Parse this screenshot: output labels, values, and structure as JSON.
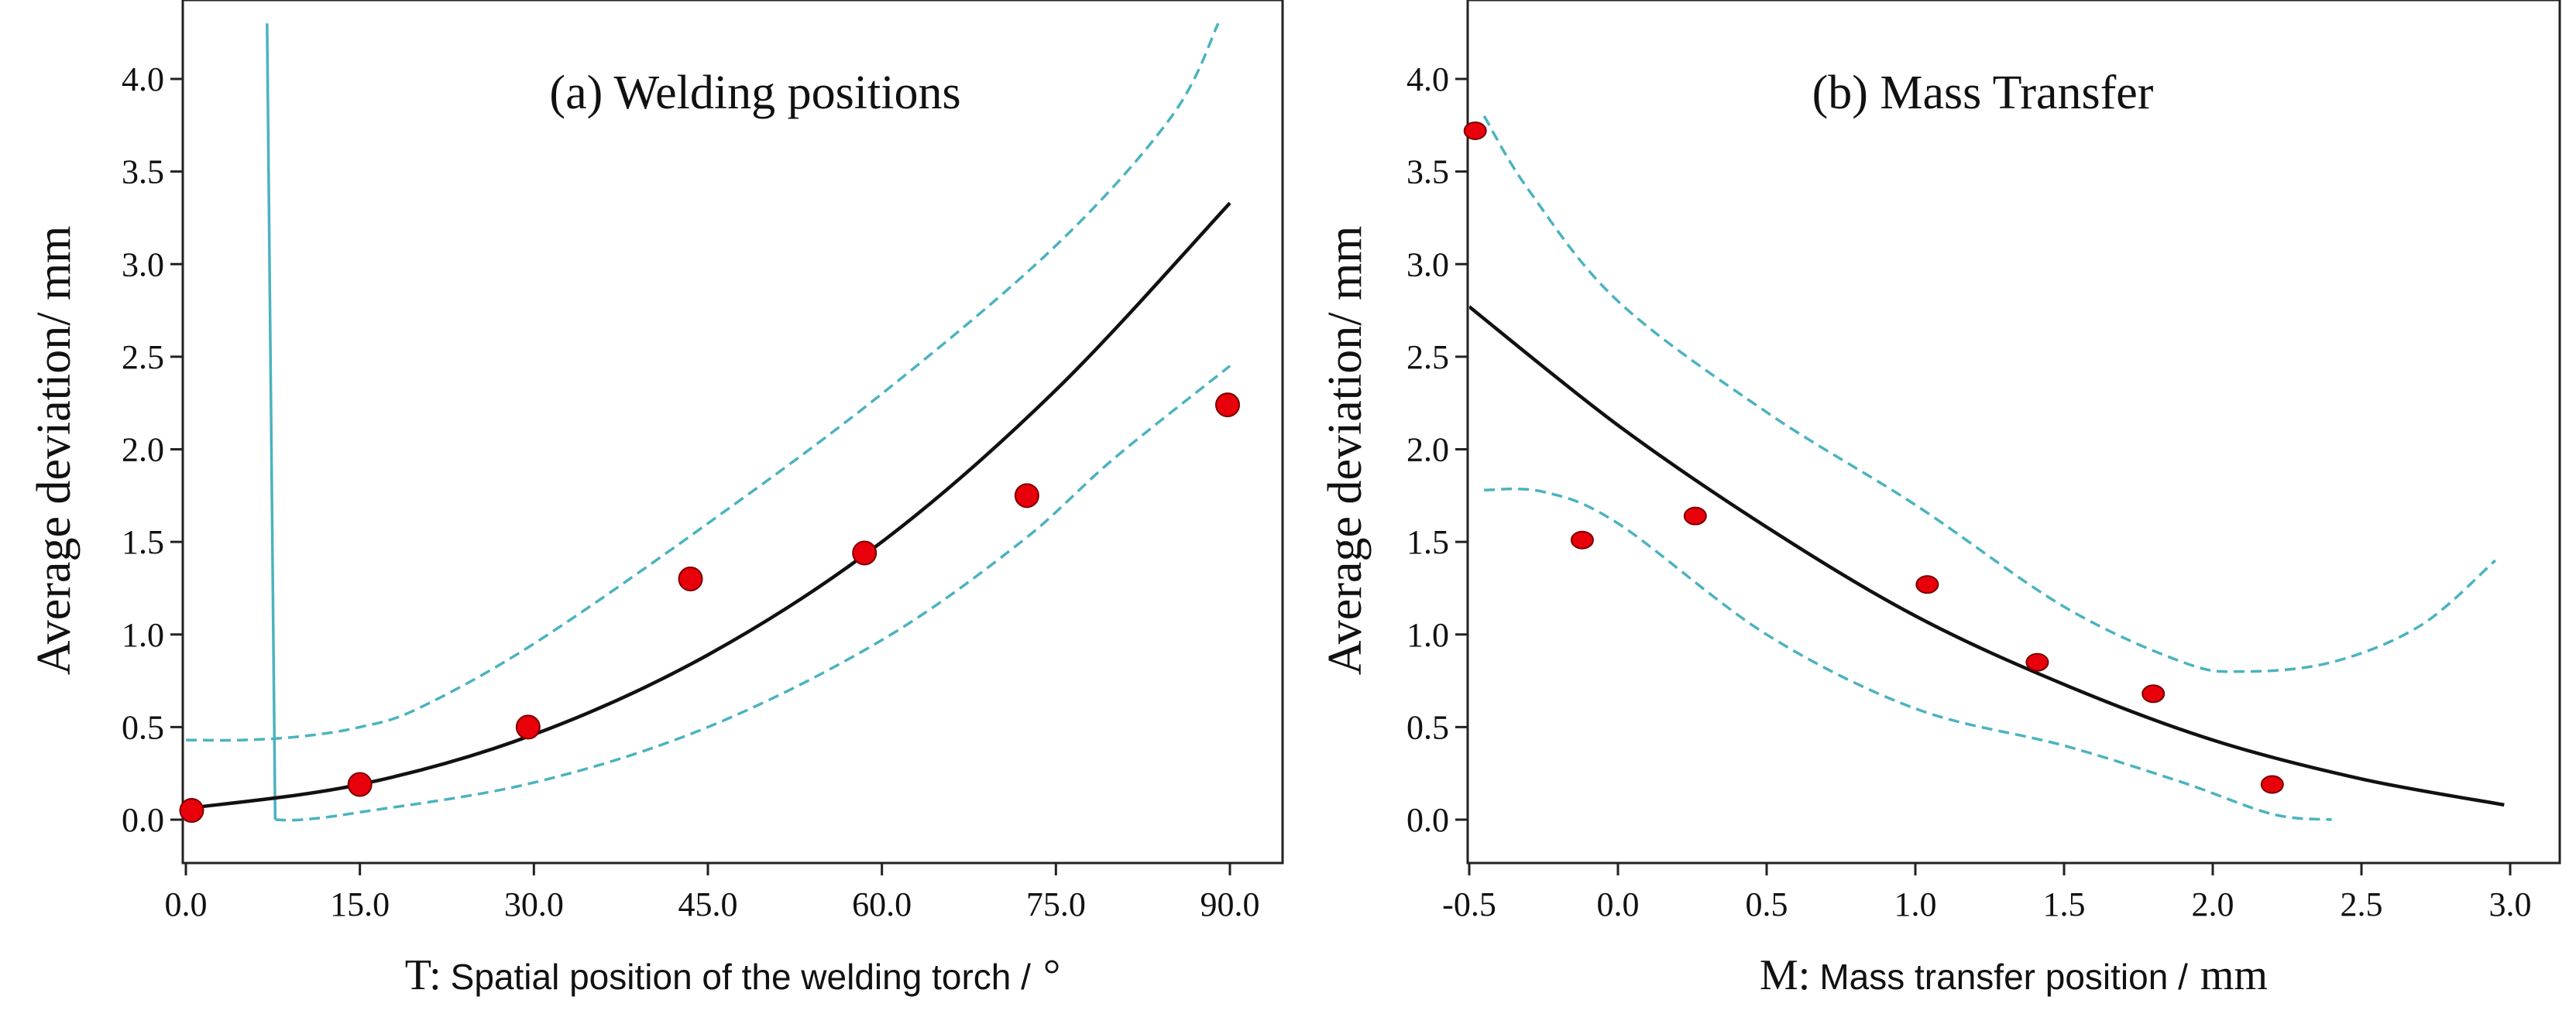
{
  "chart_data": [
    {
      "type": "scatter",
      "title": "(a) Welding positions",
      "xlabel_main": "T:",
      "xlabel_text": "Spatial position of the welding torch /",
      "xlabel_unit": "°",
      "ylabel": "Average deviation/ mm",
      "xlim": [
        0,
        90
      ],
      "ylim": [
        -0.25,
        4.3
      ],
      "xticks": [
        "0.0",
        "15.0",
        "30.0",
        "45.0",
        "60.0",
        "75.0",
        "90.0"
      ],
      "yticks": [
        "0.0",
        "0.5",
        "1.0",
        "1.5",
        "2.0",
        "2.5",
        "3.0",
        "3.5",
        "4.0"
      ],
      "points": [
        {
          "x": 0.5,
          "y": 0.05
        },
        {
          "x": 15,
          "y": 0.19
        },
        {
          "x": 29.5,
          "y": 0.5
        },
        {
          "x": 43.5,
          "y": 1.3
        },
        {
          "x": 58.5,
          "y": 1.44
        },
        {
          "x": 72.5,
          "y": 1.75
        },
        {
          "x": 89.8,
          "y": 2.24
        }
      ],
      "fit_line": {
        "x": [
          0,
          15,
          30,
          45,
          60,
          75,
          90
        ],
        "y": [
          0.06,
          0.19,
          0.46,
          0.89,
          1.5,
          2.32,
          3.33
        ]
      },
      "ci_upper": {
        "x": [
          0,
          5,
          10,
          15,
          20,
          30,
          45,
          60,
          75,
          85,
          89
        ],
        "y": [
          0.43,
          0.43,
          0.45,
          0.5,
          0.6,
          0.95,
          1.6,
          2.3,
          3.1,
          3.8,
          4.3
        ]
      },
      "ci_lower": {
        "x": [
          7.7,
          10,
          15,
          30,
          45,
          60,
          72,
          80,
          90
        ],
        "y": [
          0.0,
          0.0,
          0.04,
          0.2,
          0.5,
          0.97,
          1.5,
          1.95,
          2.45
        ]
      },
      "steep_line": {
        "x": [
          7,
          7.7
        ],
        "y": [
          4.3,
          0.0
        ]
      }
    },
    {
      "type": "scatter",
      "title": "(b) Mass Transfer",
      "xlabel_main": "M:",
      "xlabel_text": "Mass transfer position /",
      "xlabel_unit": "mm",
      "ylabel": "Average deviation/ mm",
      "xlim": [
        -0.5,
        3.0
      ],
      "ylim": [
        -0.25,
        4.3
      ],
      "xticks": [
        "-0.5",
        "0.0",
        "0.5",
        "1.0",
        "1.5",
        "2.0",
        "2.5",
        "3.0"
      ],
      "yticks": [
        "0.0",
        "0.5",
        "1.0",
        "1.5",
        "2.0",
        "2.5",
        "3.0",
        "3.5",
        "4.0"
      ],
      "points": [
        {
          "x": -0.48,
          "y": 3.72
        },
        {
          "x": -0.12,
          "y": 1.51
        },
        {
          "x": 0.26,
          "y": 1.64
        },
        {
          "x": 1.04,
          "y": 1.27
        },
        {
          "x": 1.41,
          "y": 0.85
        },
        {
          "x": 1.8,
          "y": 0.68
        },
        {
          "x": 2.2,
          "y": 0.19
        }
      ],
      "fit_line": {
        "x": [
          -0.5,
          0.0,
          0.5,
          1.0,
          1.5,
          2.0,
          2.5,
          2.98
        ],
        "y": [
          2.77,
          2.13,
          1.58,
          1.1,
          0.73,
          0.43,
          0.22,
          0.08
        ]
      },
      "ci_upper": {
        "x": [
          -0.45,
          -0.3,
          0.0,
          0.5,
          1.0,
          1.5,
          1.9,
          2.1,
          2.4,
          2.7,
          2.95
        ],
        "y": [
          3.8,
          3.4,
          2.8,
          2.2,
          1.7,
          1.15,
          0.85,
          0.8,
          0.85,
          1.05,
          1.4
        ]
      },
      "ci_lower": {
        "x": [
          -0.45,
          -0.25,
          0.0,
          0.5,
          1.0,
          1.5,
          1.9,
          2.2,
          2.4
        ],
        "y": [
          1.78,
          1.77,
          1.6,
          1.0,
          0.6,
          0.4,
          0.2,
          0.03,
          0.0
        ]
      }
    }
  ]
}
